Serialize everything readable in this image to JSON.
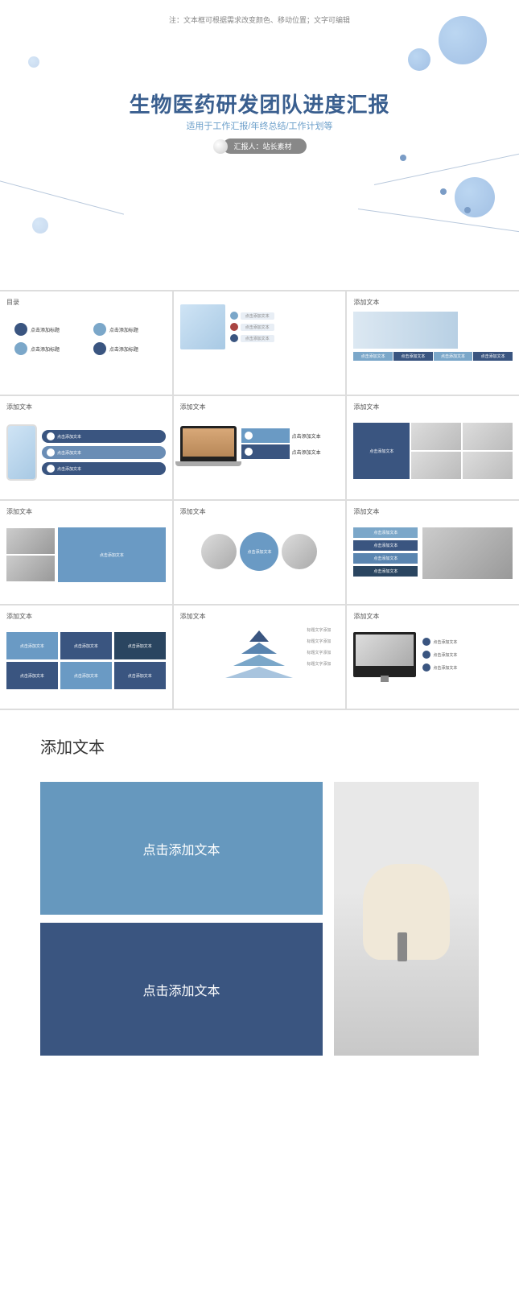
{
  "hero": {
    "note": "注：文本框可根据需求改变颜色、移动位置；文字可编辑",
    "title": "生物医药研发团队进度汇报",
    "subtitle": "适用于工作汇报/年终总结/工作计划等",
    "reporter": "汇报人：站长素材"
  },
  "colors": {
    "primary": "#3a5580",
    "secondary": "#6a9ac4",
    "accent": "#7ba7c9"
  },
  "slides": {
    "toc_title": "目录",
    "toc_item": "点击添加标题",
    "generic_title": "添加文本",
    "click_text": "点击添加文本",
    "pyramid_label": "标题文字添加"
  },
  "large": {
    "title": "添加文本",
    "box_text": "点击添加文本"
  }
}
